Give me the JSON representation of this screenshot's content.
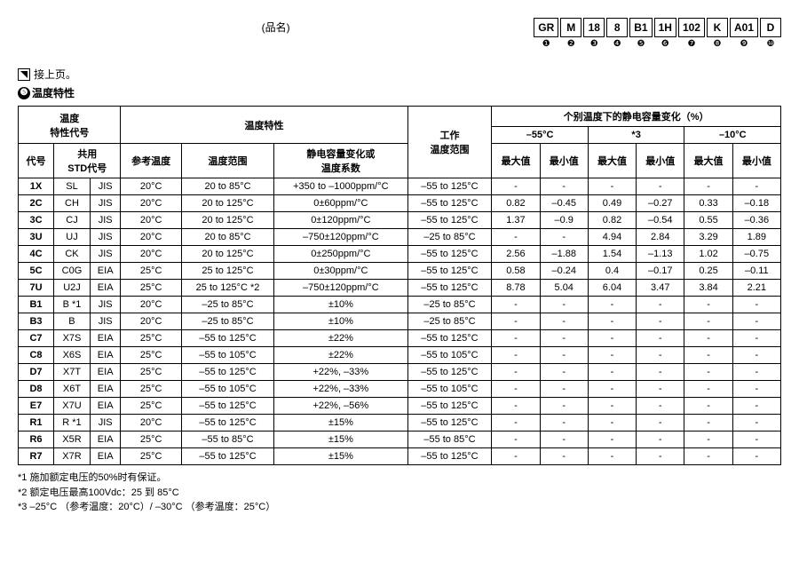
{
  "header": {
    "product_name": "(品名)",
    "codes": [
      "GR",
      "M",
      "18",
      "8",
      "B1",
      "1H",
      "102",
      "K",
      "A01",
      "D"
    ],
    "nums": [
      "❶",
      "❷",
      "❸",
      "❹",
      "❺",
      "❻",
      "❼",
      "❽",
      "❾",
      "❿"
    ]
  },
  "cont": {
    "text": "接上页。"
  },
  "section": {
    "num": "❺",
    "title": "温度特性"
  },
  "tbl": {
    "h": {
      "tc_code": "温度\n特性代号",
      "code": "代号",
      "std": "共用\nSTD代号",
      "tc": "温度特性",
      "ref": "参考温度",
      "range": "温度范围",
      "change": "静电容量变化或\n温度系数",
      "op": "工作\n温度范围",
      "capchg": "个别温度下的静电容量变化（%）",
      "t1": "–55°C",
      "t2": "*3",
      "t3": "–10°C",
      "max": "最大值",
      "min": "最小值"
    },
    "rows": [
      {
        "c": "1X",
        "s": "SL",
        "o": "JIS",
        "r": "20°C",
        "tr": "20 to 85°C",
        "ch": "+350 to –1000ppm/°C",
        "op": "–55 to 125°C",
        "v": [
          "-",
          "-",
          "-",
          "-",
          "-",
          "-"
        ]
      },
      {
        "c": "2C",
        "s": "CH",
        "o": "JIS",
        "r": "20°C",
        "tr": "20 to 125°C",
        "ch": "0±60ppm/°C",
        "op": "–55 to 125°C",
        "v": [
          "0.82",
          "–0.45",
          "0.49",
          "–0.27",
          "0.33",
          "–0.18"
        ]
      },
      {
        "c": "3C",
        "s": "CJ",
        "o": "JIS",
        "r": "20°C",
        "tr": "20 to 125°C",
        "ch": "0±120ppm/°C",
        "op": "–55 to 125°C",
        "v": [
          "1.37",
          "–0.9",
          "0.82",
          "–0.54",
          "0.55",
          "–0.36"
        ]
      },
      {
        "c": "3U",
        "s": "UJ",
        "o": "JIS",
        "r": "20°C",
        "tr": "20 to 85°C",
        "ch": "–750±120ppm/°C",
        "op": "–25 to 85°C",
        "v": [
          "-",
          "-",
          "4.94",
          "2.84",
          "3.29",
          "1.89"
        ]
      },
      {
        "c": "4C",
        "s": "CK",
        "o": "JIS",
        "r": "20°C",
        "tr": "20 to 125°C",
        "ch": "0±250ppm/°C",
        "op": "–55 to 125°C",
        "v": [
          "2.56",
          "–1.88",
          "1.54",
          "–1.13",
          "1.02",
          "–0.75"
        ]
      },
      {
        "c": "5C",
        "s": "C0G",
        "o": "EIA",
        "r": "25°C",
        "tr": "25 to 125°C",
        "ch": "0±30ppm/°C",
        "op": "–55 to 125°C",
        "v": [
          "0.58",
          "–0.24",
          "0.4",
          "–0.17",
          "0.25",
          "–0.11"
        ]
      },
      {
        "c": "7U",
        "s": "U2J",
        "o": "EIA",
        "r": "25°C",
        "tr": "25 to 125°C *2",
        "ch": "–750±120ppm/°C",
        "op": "–55 to 125°C",
        "v": [
          "8.78",
          "5.04",
          "6.04",
          "3.47",
          "3.84",
          "2.21"
        ]
      },
      {
        "c": "B1",
        "s": "B *1",
        "o": "JIS",
        "r": "20°C",
        "tr": "–25 to 85°C",
        "ch": "±10%",
        "op": "–25 to 85°C",
        "v": [
          "-",
          "-",
          "-",
          "-",
          "-",
          "-"
        ]
      },
      {
        "c": "B3",
        "s": "B",
        "o": "JIS",
        "r": "20°C",
        "tr": "–25 to 85°C",
        "ch": "±10%",
        "op": "–25 to 85°C",
        "v": [
          "-",
          "-",
          "-",
          "-",
          "-",
          "-"
        ]
      },
      {
        "c": "C7",
        "s": "X7S",
        "o": "EIA",
        "r": "25°C",
        "tr": "–55 to 125°C",
        "ch": "±22%",
        "op": "–55 to 125°C",
        "v": [
          "-",
          "-",
          "-",
          "-",
          "-",
          "-"
        ]
      },
      {
        "c": "C8",
        "s": "X6S",
        "o": "EIA",
        "r": "25°C",
        "tr": "–55 to 105°C",
        "ch": "±22%",
        "op": "–55 to 105°C",
        "v": [
          "-",
          "-",
          "-",
          "-",
          "-",
          "-"
        ]
      },
      {
        "c": "D7",
        "s": "X7T",
        "o": "EIA",
        "r": "25°C",
        "tr": "–55 to 125°C",
        "ch": "+22%, –33%",
        "op": "–55 to 125°C",
        "v": [
          "-",
          "-",
          "-",
          "-",
          "-",
          "-"
        ]
      },
      {
        "c": "D8",
        "s": "X6T",
        "o": "EIA",
        "r": "25°C",
        "tr": "–55 to 105°C",
        "ch": "+22%, –33%",
        "op": "–55 to 105°C",
        "v": [
          "-",
          "-",
          "-",
          "-",
          "-",
          "-"
        ]
      },
      {
        "c": "E7",
        "s": "X7U",
        "o": "EIA",
        "r": "25°C",
        "tr": "–55 to 125°C",
        "ch": "+22%, –56%",
        "op": "–55 to 125°C",
        "v": [
          "-",
          "-",
          "-",
          "-",
          "-",
          "-"
        ]
      },
      {
        "c": "R1",
        "s": "R *1",
        "o": "JIS",
        "r": "20°C",
        "tr": "–55 to 125°C",
        "ch": "±15%",
        "op": "–55 to 125°C",
        "v": [
          "-",
          "-",
          "-",
          "-",
          "-",
          "-"
        ]
      },
      {
        "c": "R6",
        "s": "X5R",
        "o": "EIA",
        "r": "25°C",
        "tr": "–55 to 85°C",
        "ch": "±15%",
        "op": "–55 to 85°C",
        "v": [
          "-",
          "-",
          "-",
          "-",
          "-",
          "-"
        ]
      },
      {
        "c": "R7",
        "s": "X7R",
        "o": "EIA",
        "r": "25°C",
        "tr": "–55 to 125°C",
        "ch": "±15%",
        "op": "–55 to 125°C",
        "v": [
          "-",
          "-",
          "-",
          "-",
          "-",
          "-"
        ]
      }
    ]
  },
  "foot": {
    "n1": "*1 施加额定电压的50%时有保证。",
    "n2": "*2 额定电压最高100Vdc：25 到 85°C",
    "n3": "*3 –25°C （参考温度：20°C）/ –30°C （参考温度：25°C）"
  }
}
